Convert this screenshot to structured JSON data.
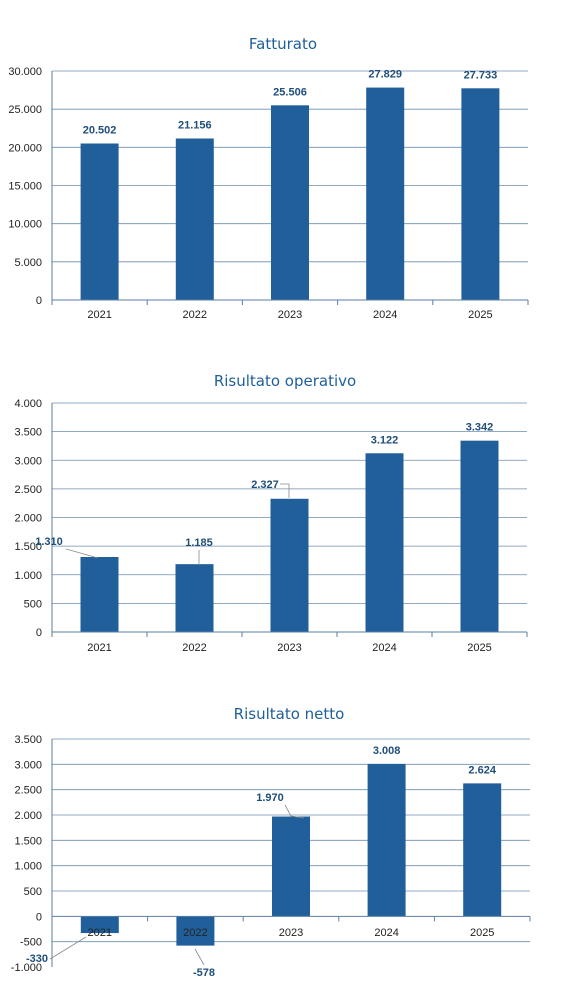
{
  "colors": {
    "bar": "#215f9a",
    "title": "#1f5f99",
    "label": "#1f4e79"
  },
  "chart_data": [
    {
      "type": "bar",
      "title": "Fatturato",
      "categories": [
        "2021",
        "2022",
        "2023",
        "2024",
        "2025"
      ],
      "values": [
        20502,
        21156,
        25506,
        27829,
        27733
      ],
      "value_labels": [
        "20.502",
        "21.156",
        "25.506",
        "27.829",
        "27.733"
      ],
      "ylim": [
        0,
        30000
      ],
      "yticks": [
        0,
        5000,
        10000,
        15000,
        20000,
        25000,
        30000
      ],
      "ytick_labels": [
        "0",
        "5.000",
        "10.000",
        "15.000",
        "20.000",
        "25.000",
        "30.000"
      ],
      "xlabel": "",
      "ylabel": "",
      "grid": true
    },
    {
      "type": "bar",
      "title": "Risultato operativo",
      "categories": [
        "2021",
        "2022",
        "2023",
        "2024",
        "2025"
      ],
      "values": [
        1310,
        1185,
        2327,
        3122,
        3342
      ],
      "value_labels": [
        "1.310",
        "1.185",
        "2.327",
        "3.122",
        "3.342"
      ],
      "ylim": [
        0,
        4000
      ],
      "yticks": [
        0,
        500,
        1000,
        1500,
        2000,
        2500,
        3000,
        3500,
        4000
      ],
      "ytick_labels": [
        "0",
        "500",
        "1.000",
        "1.500",
        "2.000",
        "2.500",
        "3.000",
        "3.500",
        "4.000"
      ],
      "xlabel": "",
      "ylabel": "",
      "grid": true
    },
    {
      "type": "bar",
      "title": "Risultato netto",
      "categories": [
        "2021",
        "2022",
        "2023",
        "2024",
        "2025"
      ],
      "values": [
        -330,
        -578,
        1970,
        3008,
        2624
      ],
      "value_labels": [
        "-330",
        "-578",
        "1.970",
        "3.008",
        "2.624"
      ],
      "ylim": [
        -1000,
        3500
      ],
      "yticks": [
        -1000,
        -500,
        0,
        500,
        1000,
        1500,
        2000,
        2500,
        3000,
        3500
      ],
      "ytick_labels": [
        "-1.000",
        "-500",
        "0",
        "500",
        "1.000",
        "1.500",
        "2.000",
        "2.500",
        "3.000",
        "3.500"
      ],
      "xlabel": "",
      "ylabel": "",
      "grid": true
    }
  ]
}
